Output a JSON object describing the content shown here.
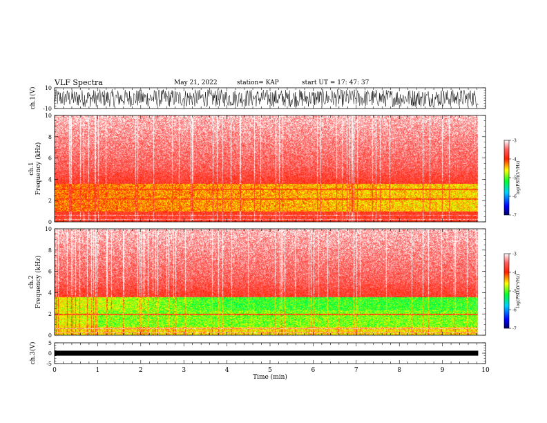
{
  "header": {
    "title": "VLF Spectra",
    "date": "May 21, 2022",
    "station": "station= KAP",
    "start": "start  UT  =   17: 47: 37"
  },
  "chart_data": [
    {
      "type": "line",
      "panel": "ch1-waveform",
      "ylabel": "ch.1(V)",
      "ylim": [
        -10,
        10
      ],
      "yticks": [
        "10",
        "-10"
      ],
      "xlim": [
        0,
        10
      ],
      "data_end_min": 9.83,
      "color": "#000000",
      "description_style": "dense noisy waveform spanning roughly -8 to 8 V"
    },
    {
      "type": "heatmap",
      "panel": "ch1-spectrogram",
      "ylabel": "ch.1\nFrequency (kHz)",
      "ylim": [
        0,
        10
      ],
      "yticks": [
        "0",
        "2",
        "4",
        "6",
        "8",
        "10"
      ],
      "xlim": [
        0,
        10
      ],
      "data_end_min": 9.83,
      "colorbar": {
        "label": "log(PSD)(V²/Hz)",
        "range": [
          -7,
          -3
        ],
        "ticks": [
          "-3",
          "-4",
          "-5",
          "-6",
          "-7"
        ]
      }
    },
    {
      "type": "heatmap",
      "panel": "ch2-spectrogram",
      "ylabel": "ch.2\nFrequency (kHz)",
      "ylim": [
        0,
        10
      ],
      "yticks": [
        "0",
        "2",
        "4",
        "6",
        "8",
        "10"
      ],
      "xlim": [
        0,
        10
      ],
      "data_end_min": 9.83,
      "colorbar": {
        "label": "log(PSD)(V²/Hz)",
        "range": [
          -7,
          -3
        ],
        "ticks": [
          "-3",
          "-4",
          "-5",
          "-6",
          "-7"
        ]
      }
    },
    {
      "type": "line",
      "panel": "ch3-waveform",
      "ylabel": "ch.3(V)",
      "ylim": [
        -5,
        5
      ],
      "yticks": [
        "5",
        "0",
        "-5"
      ],
      "xlim": [
        0,
        10
      ],
      "data_end_min": 9.83,
      "color": "#000000",
      "xlabel": "Time  (min)",
      "xticks": [
        "0",
        "1",
        "2",
        "3",
        "4",
        "5",
        "6",
        "7",
        "8",
        "9",
        "10"
      ]
    }
  ]
}
